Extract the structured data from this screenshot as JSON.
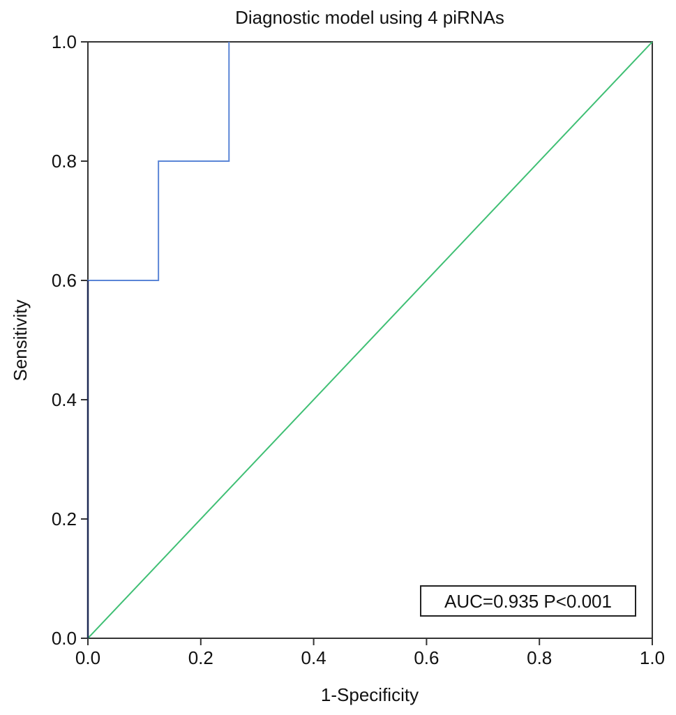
{
  "chart_data": {
    "type": "line",
    "title": "Diagnostic model using 4 piRNAs",
    "xlabel": "1-Specificity",
    "ylabel": "Sensitivity",
    "xlim": [
      0,
      1
    ],
    "ylim": [
      0,
      1
    ],
    "xticks": [
      "0.0",
      "0.2",
      "0.4",
      "0.6",
      "0.8",
      "1.0"
    ],
    "yticks": [
      "0.0",
      "0.2",
      "0.4",
      "0.6",
      "0.8",
      "1.0"
    ],
    "grid": false,
    "legend": null,
    "series": [
      {
        "role": "roc",
        "color": "#5a85d6",
        "x": [
          0.0,
          0.0,
          0.125,
          0.125,
          0.25,
          0.25
        ],
        "y": [
          0.0,
          0.6,
          0.6,
          0.8,
          0.8,
          1.0
        ]
      },
      {
        "role": "reference",
        "color": "#3fbf74",
        "x": [
          0.0,
          1.0
        ],
        "y": [
          0.0,
          1.0
        ]
      }
    ],
    "annotations": [
      {
        "text": "AUC=0.935 P<0.001",
        "position": "bottom-right"
      }
    ]
  }
}
